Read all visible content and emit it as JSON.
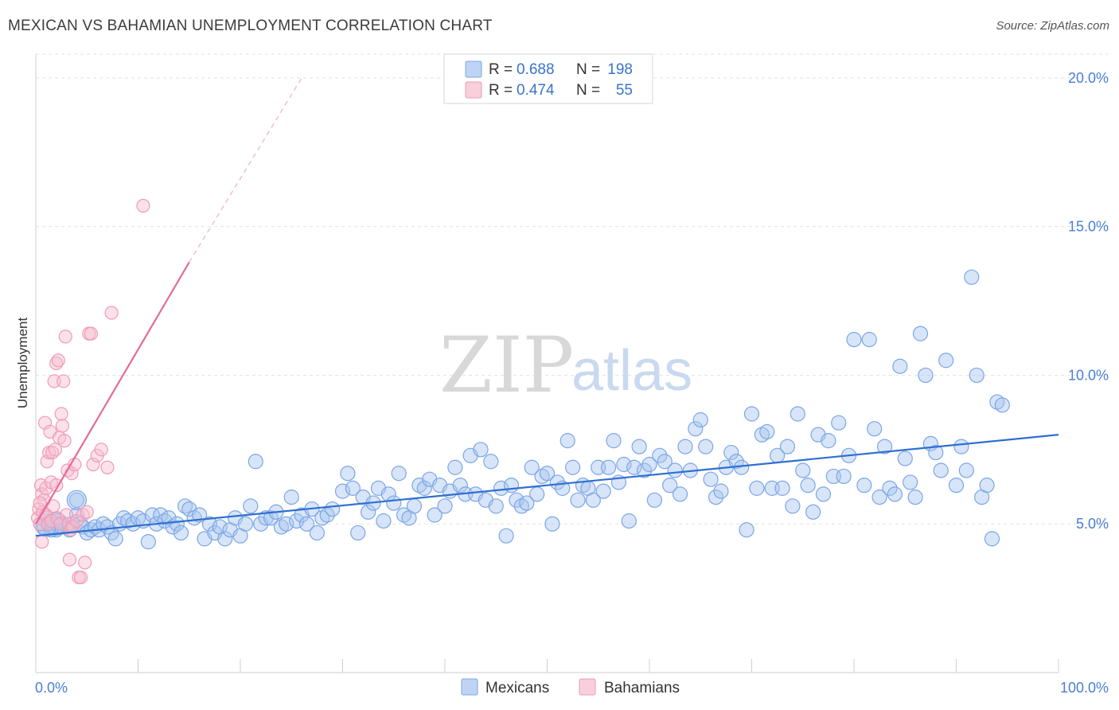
{
  "title": "MEXICAN VS BAHAMIAN UNEMPLOYMENT CORRELATION CHART",
  "source": "Source: ZipAtlas.com",
  "watermark": {
    "zip": "ZIP",
    "atlas": "atlas"
  },
  "chart_data": {
    "type": "scatter",
    "ylabel": "Unemployment",
    "xlim": [
      0,
      100
    ],
    "ylim": [
      0,
      20.8
    ],
    "y_ticks": [
      {
        "value": 5,
        "label": "5.0%"
      },
      {
        "value": 10,
        "label": "10.0%"
      },
      {
        "value": 15,
        "label": "15.0%"
      },
      {
        "value": 20,
        "label": "20.0%"
      }
    ],
    "x_tick_labels": {
      "left": "0.0%",
      "right": "100.0%"
    },
    "x_minor_ticks": [
      10,
      20,
      30,
      40,
      50,
      60,
      70,
      80,
      90,
      100
    ],
    "grid": true,
    "legend": {
      "position": "top-center",
      "rows": [
        {
          "r_label": "R =",
          "r": "0.688",
          "n_label": "N =",
          "n": "198"
        },
        {
          "r_label": "R =",
          "r": "0.474",
          "n_label": "N =",
          "n": "55"
        }
      ]
    },
    "series": [
      {
        "name": "Mexicans",
        "color": "#7aa6e6",
        "fill": "#a9c6f0",
        "trend": {
          "x": [
            0,
            100
          ],
          "y": [
            4.6,
            8.0
          ],
          "color": "#2f6fd0"
        },
        "points": [
          [
            0.5,
            5.0
          ],
          [
            0.8,
            4.9
          ],
          [
            1.0,
            5.1
          ],
          [
            1.2,
            5.2
          ],
          [
            1.5,
            4.9
          ],
          [
            1.8,
            5.0
          ],
          [
            2.0,
            4.8
          ],
          [
            2.3,
            5.1
          ],
          [
            2.6,
            5.0
          ],
          [
            3.0,
            4.9
          ],
          [
            3.3,
            4.8
          ],
          [
            3.6,
            5.0
          ],
          [
            4.0,
            5.3
          ],
          [
            4.0,
            5.8
          ],
          [
            4.3,
            5.0
          ],
          [
            4.6,
            4.9
          ],
          [
            5.0,
            4.7
          ],
          [
            5.4,
            4.8
          ],
          [
            5.8,
            4.9
          ],
          [
            6.2,
            4.8
          ],
          [
            6.6,
            5.0
          ],
          [
            7.0,
            4.9
          ],
          [
            7.4,
            4.7
          ],
          [
            7.8,
            4.5
          ],
          [
            8.2,
            5.0
          ],
          [
            8.6,
            5.2
          ],
          [
            9.0,
            5.1
          ],
          [
            9.5,
            5.0
          ],
          [
            10.0,
            5.2
          ],
          [
            10.5,
            5.1
          ],
          [
            11.0,
            4.4
          ],
          [
            11.4,
            5.3
          ],
          [
            11.8,
            5.0
          ],
          [
            12.2,
            5.3
          ],
          [
            12.6,
            5.1
          ],
          [
            13.0,
            5.2
          ],
          [
            13.4,
            4.9
          ],
          [
            13.8,
            5.0
          ],
          [
            14.2,
            4.7
          ],
          [
            14.6,
            5.6
          ],
          [
            15.0,
            5.5
          ],
          [
            15.5,
            5.2
          ],
          [
            16.0,
            5.3
          ],
          [
            16.5,
            4.5
          ],
          [
            17.0,
            5.0
          ],
          [
            17.5,
            4.7
          ],
          [
            18.0,
            4.9
          ],
          [
            18.5,
            4.5
          ],
          [
            19.0,
            4.8
          ],
          [
            19.5,
            5.2
          ],
          [
            20.0,
            4.6
          ],
          [
            20.5,
            5.0
          ],
          [
            21.0,
            5.6
          ],
          [
            21.5,
            7.1
          ],
          [
            22.0,
            5.0
          ],
          [
            22.5,
            5.2
          ],
          [
            23.0,
            5.2
          ],
          [
            23.5,
            5.4
          ],
          [
            24.0,
            4.9
          ],
          [
            24.5,
            5.0
          ],
          [
            25.0,
            5.9
          ],
          [
            25.5,
            5.1
          ],
          [
            26.0,
            5.3
          ],
          [
            26.5,
            5.0
          ],
          [
            27.0,
            5.5
          ],
          [
            27.5,
            4.7
          ],
          [
            28.0,
            5.2
          ],
          [
            28.5,
            5.3
          ],
          [
            29.0,
            5.5
          ],
          [
            30.0,
            6.1
          ],
          [
            30.5,
            6.7
          ],
          [
            31.0,
            6.2
          ],
          [
            31.5,
            4.7
          ],
          [
            32.0,
            5.9
          ],
          [
            32.5,
            5.4
          ],
          [
            33.0,
            5.7
          ],
          [
            33.5,
            6.2
          ],
          [
            34.0,
            5.1
          ],
          [
            34.5,
            6.0
          ],
          [
            35.0,
            5.7
          ],
          [
            35.5,
            6.7
          ],
          [
            36.0,
            5.3
          ],
          [
            36.5,
            5.2
          ],
          [
            37.0,
            5.6
          ],
          [
            37.5,
            6.3
          ],
          [
            38.0,
            6.2
          ],
          [
            38.5,
            6.5
          ],
          [
            39.0,
            5.3
          ],
          [
            39.5,
            6.3
          ],
          [
            40.0,
            5.6
          ],
          [
            40.5,
            6.1
          ],
          [
            41.0,
            6.9
          ],
          [
            41.5,
            6.3
          ],
          [
            42.0,
            6.0
          ],
          [
            42.5,
            7.3
          ],
          [
            43.0,
            6.0
          ],
          [
            43.5,
            7.5
          ],
          [
            44.0,
            5.8
          ],
          [
            44.5,
            7.1
          ],
          [
            45.0,
            5.6
          ],
          [
            45.5,
            6.2
          ],
          [
            46.0,
            4.6
          ],
          [
            46.5,
            6.3
          ],
          [
            47.0,
            5.8
          ],
          [
            47.5,
            5.6
          ],
          [
            48.0,
            5.7
          ],
          [
            48.5,
            6.9
          ],
          [
            49.0,
            6.0
          ],
          [
            49.5,
            6.6
          ],
          [
            50.0,
            6.7
          ],
          [
            50.5,
            5.0
          ],
          [
            51.0,
            6.4
          ],
          [
            51.5,
            6.2
          ],
          [
            52.0,
            7.8
          ],
          [
            52.5,
            6.9
          ],
          [
            53.0,
            5.8
          ],
          [
            53.5,
            6.3
          ],
          [
            54.0,
            6.2
          ],
          [
            54.5,
            5.8
          ],
          [
            55.0,
            6.9
          ],
          [
            55.5,
            6.1
          ],
          [
            56.0,
            6.9
          ],
          [
            56.5,
            7.8
          ],
          [
            57.0,
            6.4
          ],
          [
            57.5,
            7.0
          ],
          [
            58.0,
            5.1
          ],
          [
            58.5,
            6.9
          ],
          [
            59.0,
            7.6
          ],
          [
            59.5,
            6.8
          ],
          [
            60.0,
            7.0
          ],
          [
            60.5,
            5.8
          ],
          [
            61.0,
            7.3
          ],
          [
            61.5,
            7.1
          ],
          [
            62.0,
            6.3
          ],
          [
            62.5,
            6.8
          ],
          [
            63.0,
            6.0
          ],
          [
            63.5,
            7.6
          ],
          [
            64.0,
            6.8
          ],
          [
            64.5,
            8.2
          ],
          [
            65.0,
            8.5
          ],
          [
            65.5,
            7.6
          ],
          [
            66.0,
            6.5
          ],
          [
            66.5,
            5.9
          ],
          [
            67.0,
            6.1
          ],
          [
            67.5,
            6.9
          ],
          [
            68.0,
            7.4
          ],
          [
            68.5,
            7.1
          ],
          [
            69.0,
            6.9
          ],
          [
            69.5,
            4.8
          ],
          [
            70.0,
            8.7
          ],
          [
            70.5,
            6.2
          ],
          [
            71.0,
            8.0
          ],
          [
            71.5,
            8.1
          ],
          [
            72.0,
            6.2
          ],
          [
            72.5,
            7.3
          ],
          [
            73.0,
            6.2
          ],
          [
            73.5,
            7.6
          ],
          [
            74.0,
            5.6
          ],
          [
            74.5,
            8.7
          ],
          [
            75.0,
            6.8
          ],
          [
            75.5,
            6.3
          ],
          [
            76.0,
            5.4
          ],
          [
            76.5,
            8.0
          ],
          [
            77.0,
            6.0
          ],
          [
            77.5,
            7.8
          ],
          [
            78.0,
            6.6
          ],
          [
            78.5,
            8.4
          ],
          [
            79.0,
            6.6
          ],
          [
            79.5,
            7.3
          ],
          [
            80.0,
            11.2
          ],
          [
            81.0,
            6.3
          ],
          [
            81.5,
            11.2
          ],
          [
            82.0,
            8.2
          ],
          [
            82.5,
            5.9
          ],
          [
            83.0,
            7.6
          ],
          [
            83.5,
            6.2
          ],
          [
            84.0,
            6.0
          ],
          [
            84.5,
            10.3
          ],
          [
            85.0,
            7.2
          ],
          [
            85.5,
            6.4
          ],
          [
            86.0,
            5.9
          ],
          [
            86.5,
            11.4
          ],
          [
            87.0,
            10.0
          ],
          [
            87.5,
            7.7
          ],
          [
            88.0,
            7.4
          ],
          [
            88.5,
            6.8
          ],
          [
            89.0,
            10.5
          ],
          [
            90.0,
            6.3
          ],
          [
            90.5,
            7.6
          ],
          [
            91.0,
            6.8
          ],
          [
            91.5,
            13.3
          ],
          [
            92.0,
            10.0
          ],
          [
            92.5,
            5.9
          ],
          [
            93.0,
            6.3
          ],
          [
            93.5,
            4.5
          ],
          [
            94.0,
            9.1
          ],
          [
            94.5,
            9.0
          ],
          [
            2.0,
            5.0
          ],
          [
            1.5,
            4.8
          ],
          [
            2.5,
            4.9
          ]
        ]
      },
      {
        "name": "Bahamians",
        "color": "#f19ab5",
        "fill": "#f7bfd0",
        "trend": {
          "x": [
            0,
            15
          ],
          "y": [
            5.0,
            13.8
          ],
          "color": "#e46c95"
        },
        "trend_dashed": {
          "x": [
            15,
            26
          ],
          "y": [
            13.8,
            20.0
          ]
        },
        "points": [
          [
            0.2,
            5.2
          ],
          [
            0.3,
            5.5
          ],
          [
            0.4,
            5.0
          ],
          [
            0.5,
            6.3
          ],
          [
            0.6,
            6.0
          ],
          [
            0.6,
            4.4
          ],
          [
            0.7,
            5.4
          ],
          [
            0.8,
            5.8
          ],
          [
            0.9,
            8.4
          ],
          [
            1.0,
            5.3
          ],
          [
            1.0,
            6.2
          ],
          [
            1.1,
            7.1
          ],
          [
            1.2,
            5.0
          ],
          [
            1.3,
            7.4
          ],
          [
            1.4,
            8.1
          ],
          [
            1.5,
            6.4
          ],
          [
            1.5,
            5.1
          ],
          [
            1.6,
            7.4
          ],
          [
            1.7,
            5.6
          ],
          [
            1.8,
            9.8
          ],
          [
            1.9,
            7.5
          ],
          [
            2.0,
            10.4
          ],
          [
            2.0,
            6.3
          ],
          [
            2.1,
            5.2
          ],
          [
            2.2,
            10.5
          ],
          [
            2.3,
            7.9
          ],
          [
            2.4,
            5.0
          ],
          [
            2.5,
            8.7
          ],
          [
            2.6,
            8.3
          ],
          [
            2.7,
            9.8
          ],
          [
            2.8,
            7.8
          ],
          [
            2.9,
            11.3
          ],
          [
            3.0,
            5.3
          ],
          [
            3.1,
            6.8
          ],
          [
            3.2,
            5.0
          ],
          [
            3.3,
            3.8
          ],
          [
            3.4,
            4.8
          ],
          [
            3.5,
            6.7
          ],
          [
            3.6,
            4.9
          ],
          [
            3.8,
            7.0
          ],
          [
            4.0,
            5.1
          ],
          [
            4.2,
            3.2
          ],
          [
            4.4,
            3.2
          ],
          [
            4.6,
            5.3
          ],
          [
            4.8,
            3.7
          ],
          [
            5.0,
            5.4
          ],
          [
            5.2,
            11.4
          ],
          [
            5.4,
            11.4
          ],
          [
            5.6,
            7.0
          ],
          [
            6.0,
            7.3
          ],
          [
            6.4,
            7.5
          ],
          [
            7.0,
            6.9
          ],
          [
            7.4,
            12.1
          ],
          [
            10.5,
            15.7
          ],
          [
            0.4,
            5.7
          ]
        ]
      }
    ]
  }
}
